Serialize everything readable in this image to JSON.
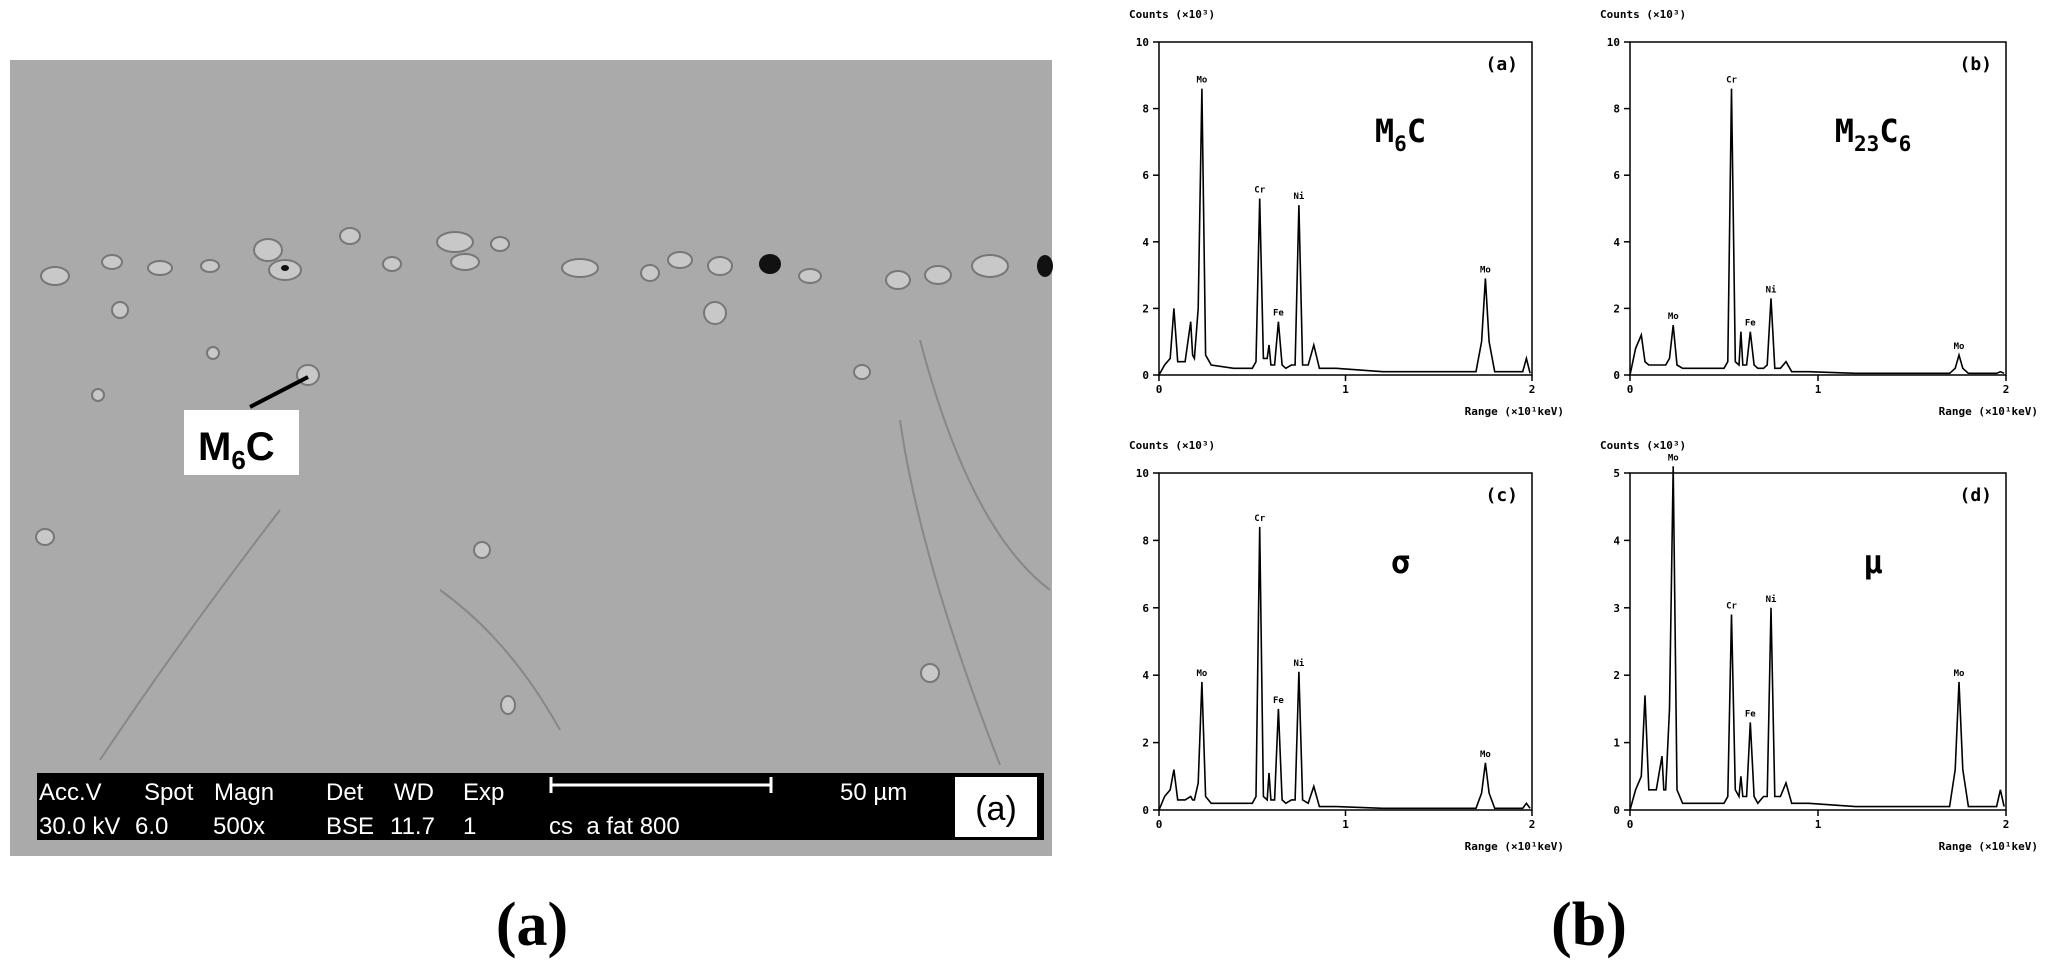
{
  "sem_image": {
    "marker_label": {
      "parts": [
        "M",
        "6",
        "C"
      ],
      "subscript": [
        false,
        true,
        false
      ]
    },
    "info_bar": {
      "headers": [
        "Acc.V",
        "Spot",
        "Magn",
        "Det",
        "WD",
        "Exp"
      ],
      "values": [
        "30.0 kV",
        "6.0",
        "500x",
        "BSE",
        "11.7",
        "1"
      ],
      "sample": "cs  a fat 800",
      "scale_bar": "50 µm",
      "panel_tag": "(a)"
    }
  },
  "chart_data": [
    {
      "type": "line",
      "panel_tag": "(a)",
      "phase_label": {
        "parts": [
          "M",
          "6",
          "C"
        ],
        "subscript": [
          false,
          true,
          false
        ]
      },
      "y_label": "Counts (×10³)",
      "x_label": "Range (×10¹keV)",
      "color": "#000000",
      "xlim": [
        0,
        2
      ],
      "ylim": [
        0,
        10
      ],
      "xticks": [
        0,
        1,
        2
      ],
      "yticks": [
        0,
        2,
        4,
        6,
        8,
        10
      ],
      "x": [
        0,
        0.03,
        0.06,
        0.08,
        0.1,
        0.14,
        0.17,
        0.18,
        0.19,
        0.21,
        0.23,
        0.25,
        0.28,
        0.4,
        0.5,
        0.52,
        0.54,
        0.56,
        0.58,
        0.59,
        0.6,
        0.62,
        0.64,
        0.66,
        0.68,
        0.71,
        0.73,
        0.75,
        0.77,
        0.8,
        0.83,
        0.86,
        0.95,
        1.2,
        1.5,
        1.7,
        1.73,
        1.75,
        1.77,
        1.8,
        1.95,
        1.97,
        1.99
      ],
      "values": [
        0,
        0.3,
        0.5,
        2.0,
        0.4,
        0.4,
        1.6,
        0.6,
        0.5,
        2.0,
        8.6,
        0.6,
        0.3,
        0.2,
        0.2,
        0.4,
        5.3,
        0.5,
        0.5,
        0.9,
        0.3,
        0.3,
        1.6,
        0.3,
        0.2,
        0.3,
        0.3,
        5.1,
        0.3,
        0.3,
        0.9,
        0.2,
        0.2,
        0.1,
        0.1,
        0.1,
        1.0,
        2.9,
        1.0,
        0.1,
        0.1,
        0.5,
        0.05
      ],
      "point_labels": [
        null,
        null,
        null,
        null,
        null,
        null,
        null,
        null,
        null,
        null,
        "Mo",
        null,
        null,
        null,
        null,
        null,
        "Cr",
        null,
        null,
        null,
        null,
        null,
        "Fe",
        null,
        null,
        null,
        null,
        "Ni",
        null,
        null,
        null,
        null,
        null,
        null,
        null,
        null,
        null,
        "Mo",
        null,
        null,
        null,
        null,
        null
      ]
    },
    {
      "type": "line",
      "panel_tag": "(b)",
      "phase_label": {
        "parts": [
          "M",
          "23",
          "C",
          "6"
        ],
        "subscript": [
          false,
          true,
          false,
          true
        ]
      },
      "y_label": "Counts (×10³)",
      "x_label": "Range (×10¹keV)",
      "color": "#000000",
      "xlim": [
        0,
        2
      ],
      "ylim": [
        0,
        10
      ],
      "xticks": [
        0,
        1,
        2
      ],
      "yticks": [
        0,
        2,
        4,
        6,
        8,
        10
      ],
      "x": [
        0,
        0.03,
        0.06,
        0.08,
        0.1,
        0.14,
        0.17,
        0.18,
        0.19,
        0.21,
        0.23,
        0.25,
        0.28,
        0.4,
        0.5,
        0.52,
        0.54,
        0.56,
        0.58,
        0.59,
        0.6,
        0.62,
        0.64,
        0.66,
        0.68,
        0.71,
        0.73,
        0.75,
        0.77,
        0.8,
        0.83,
        0.86,
        0.95,
        1.2,
        1.5,
        1.7,
        1.73,
        1.75,
        1.77,
        1.8,
        1.95,
        1.97,
        1.99
      ],
      "values": [
        0,
        0.8,
        1.2,
        0.4,
        0.3,
        0.3,
        0.3,
        0.3,
        0.3,
        0.5,
        1.5,
        0.3,
        0.2,
        0.2,
        0.2,
        0.4,
        8.6,
        0.4,
        0.3,
        1.3,
        0.3,
        0.3,
        1.3,
        0.3,
        0.2,
        0.2,
        0.3,
        2.3,
        0.2,
        0.2,
        0.4,
        0.1,
        0.1,
        0.05,
        0.05,
        0.05,
        0.2,
        0.6,
        0.2,
        0.05,
        0.05,
        0.1,
        0.05
      ],
      "point_labels": [
        null,
        null,
        null,
        null,
        null,
        null,
        null,
        null,
        null,
        null,
        "Mo",
        null,
        null,
        null,
        null,
        null,
        "Cr",
        null,
        null,
        null,
        null,
        null,
        "Fe",
        null,
        null,
        null,
        null,
        "Ni",
        null,
        null,
        null,
        null,
        null,
        null,
        null,
        null,
        null,
        "Mo",
        null,
        null,
        null,
        null,
        null
      ]
    },
    {
      "type": "line",
      "panel_tag": "(c)",
      "phase_label": {
        "parts": [
          "σ"
        ],
        "subscript": [
          false
        ]
      },
      "y_label": "Counts (×10³)",
      "x_label": "Range (×10¹keV)",
      "color": "#000000",
      "xlim": [
        0,
        2
      ],
      "ylim": [
        0,
        10
      ],
      "xticks": [
        0,
        1,
        2
      ],
      "yticks": [
        0,
        2,
        4,
        6,
        8,
        10
      ],
      "x": [
        0,
        0.03,
        0.06,
        0.08,
        0.1,
        0.14,
        0.17,
        0.18,
        0.19,
        0.21,
        0.23,
        0.25,
        0.28,
        0.4,
        0.5,
        0.52,
        0.54,
        0.56,
        0.58,
        0.59,
        0.6,
        0.62,
        0.64,
        0.66,
        0.68,
        0.71,
        0.73,
        0.75,
        0.77,
        0.8,
        0.83,
        0.86,
        0.95,
        1.2,
        1.5,
        1.7,
        1.73,
        1.75,
        1.77,
        1.8,
        1.95,
        1.97,
        1.99
      ],
      "values": [
        0,
        0.4,
        0.6,
        1.2,
        0.3,
        0.3,
        0.4,
        0.3,
        0.3,
        0.8,
        3.8,
        0.4,
        0.2,
        0.2,
        0.2,
        0.4,
        8.4,
        0.4,
        0.3,
        1.1,
        0.3,
        0.3,
        3.0,
        0.3,
        0.2,
        0.3,
        0.3,
        4.1,
        0.3,
        0.2,
        0.7,
        0.1,
        0.1,
        0.05,
        0.05,
        0.05,
        0.5,
        1.4,
        0.5,
        0.05,
        0.05,
        0.2,
        0.05
      ],
      "point_labels": [
        null,
        null,
        null,
        null,
        null,
        null,
        null,
        null,
        null,
        null,
        "Mo",
        null,
        null,
        null,
        null,
        null,
        "Cr",
        null,
        null,
        null,
        null,
        null,
        "Fe",
        null,
        null,
        null,
        null,
        "Ni",
        null,
        null,
        null,
        null,
        null,
        null,
        null,
        null,
        null,
        "Mo",
        null,
        null,
        null,
        null,
        null
      ]
    },
    {
      "type": "line",
      "panel_tag": "(d)",
      "phase_label": {
        "parts": [
          "μ"
        ],
        "subscript": [
          false
        ]
      },
      "y_label": "Counts (×10³)",
      "x_label": "Range (×10¹keV)",
      "color": "#000000",
      "xlim": [
        0,
        2
      ],
      "ylim": [
        0,
        5
      ],
      "xticks": [
        0,
        1,
        2
      ],
      "yticks": [
        0,
        1,
        2,
        3,
        4,
        5
      ],
      "x": [
        0,
        0.03,
        0.06,
        0.08,
        0.1,
        0.14,
        0.17,
        0.18,
        0.19,
        0.21,
        0.23,
        0.25,
        0.28,
        0.4,
        0.5,
        0.52,
        0.54,
        0.56,
        0.58,
        0.59,
        0.6,
        0.62,
        0.64,
        0.66,
        0.68,
        0.71,
        0.73,
        0.75,
        0.77,
        0.8,
        0.83,
        0.86,
        0.95,
        1.2,
        1.5,
        1.7,
        1.73,
        1.75,
        1.77,
        1.8,
        1.95,
        1.97,
        1.99
      ],
      "values": [
        0,
        0.3,
        0.5,
        1.7,
        0.3,
        0.3,
        0.8,
        0.3,
        0.3,
        1.5,
        5.1,
        0.3,
        0.1,
        0.1,
        0.1,
        0.2,
        2.9,
        0.3,
        0.2,
        0.5,
        0.2,
        0.2,
        1.3,
        0.2,
        0.1,
        0.2,
        0.2,
        3.0,
        0.2,
        0.2,
        0.4,
        0.1,
        0.1,
        0.05,
        0.05,
        0.05,
        0.6,
        1.9,
        0.6,
        0.05,
        0.05,
        0.3,
        0.05
      ],
      "point_labels": [
        null,
        null,
        null,
        null,
        null,
        null,
        null,
        null,
        null,
        null,
        "Mo",
        null,
        null,
        null,
        null,
        null,
        "Cr",
        null,
        null,
        null,
        null,
        null,
        "Fe",
        null,
        null,
        null,
        null,
        "Ni",
        null,
        null,
        null,
        null,
        null,
        null,
        null,
        null,
        null,
        "Mo",
        null,
        null,
        null,
        null,
        null
      ]
    }
  ],
  "captions": [
    "(a)",
    "(b)"
  ]
}
